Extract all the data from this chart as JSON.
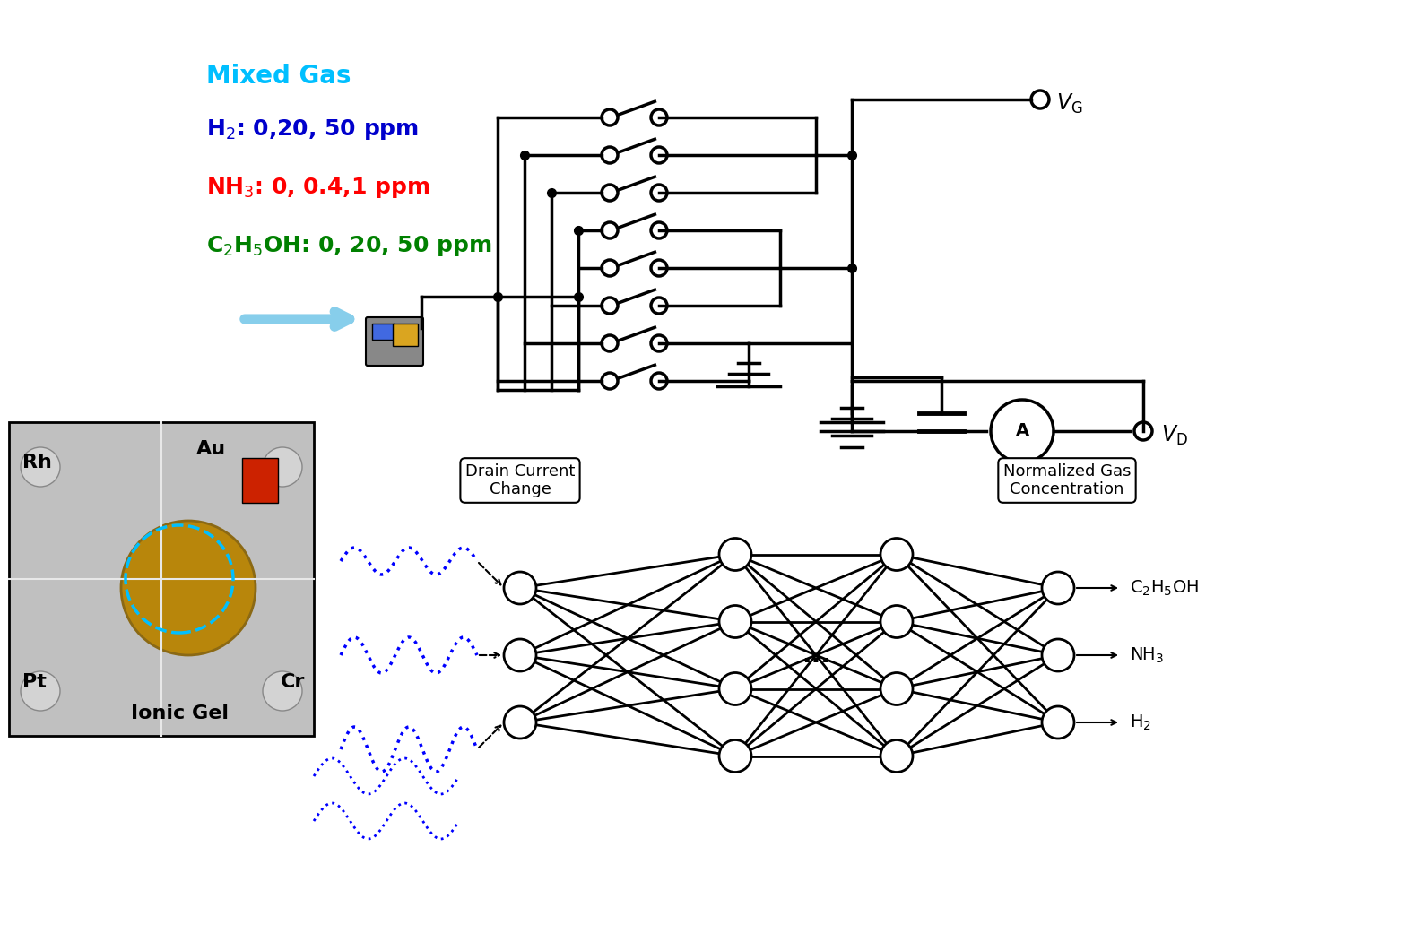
{
  "bg_color": "#ffffff",
  "mixed_gas_title": "Mixed Gas",
  "mixed_gas_color": "#00BFFF",
  "h2_text": "H$_2$: 0,20, 50 ppm",
  "h2_color": "#0000CC",
  "nh3_text": "NH$_3$: 0, 0.4,1 ppm",
  "nh3_color": "#FF0000",
  "c2h5oh_text": "C$_2$H$_5$OH: 0, 20, 50 ppm",
  "c2h5oh_color": "#008000",
  "vg_label": "$V_\\mathrm{G}$",
  "vd_label": "$V_\\mathrm{D}$",
  "drain_current_label": "Drain Current\nChange",
  "normalized_gas_label": "Normalized Gas\nConcentration",
  "h2_out": "H$_2$",
  "nh3_out": "NH$_3$",
  "c2h5oh_out": "C$_2$H$_5$OH",
  "au_label": "Au",
  "rh_label": "Rh",
  "pt_label": "Pt",
  "cr_label": "Cr",
  "ionic_gel_label": "Ionic Gel",
  "switch_count": 8
}
